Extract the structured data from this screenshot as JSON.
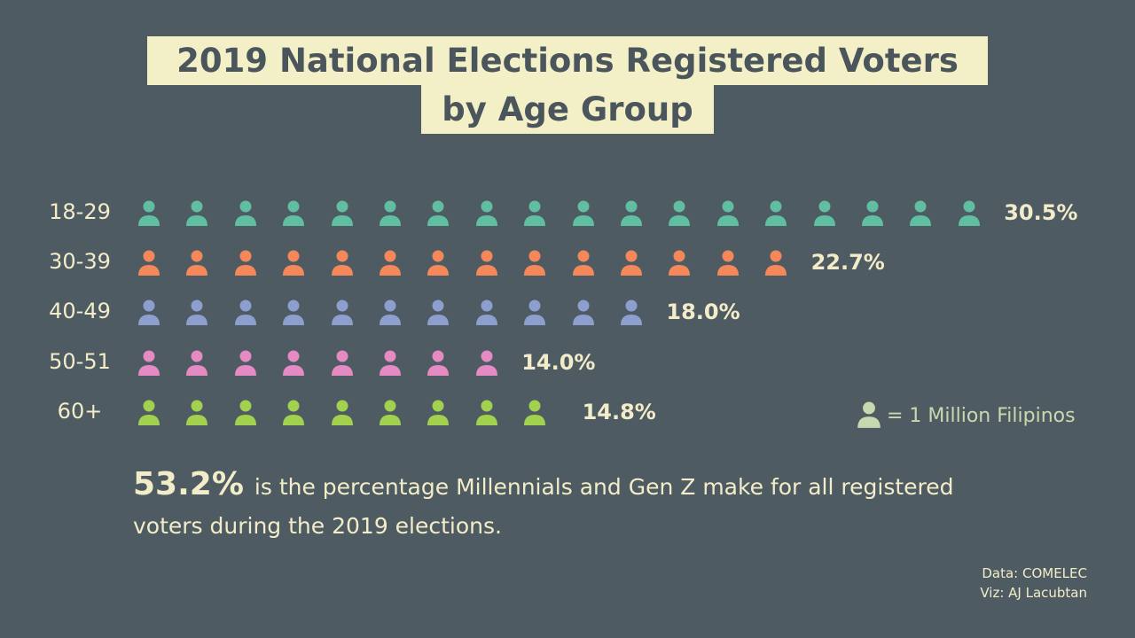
{
  "chart_data": {
    "type": "pictograph",
    "title": [
      "2019 National Elections Registered Voters",
      "by Age Group"
    ],
    "unit_label": "= 1 Million Filipinos",
    "categories": [
      "18-29",
      "30-39",
      "40-49",
      "50-51",
      "60+"
    ],
    "icon_counts": [
      18,
      14,
      11,
      8,
      9
    ],
    "percent_labels": [
      "30.5%",
      "22.7%",
      "18.0%",
      "14.0%",
      "14.8%"
    ],
    "colors": [
      "#5fbfa0",
      "#f4885a",
      "#8c9fcf",
      "#e68ac3",
      "#a2d04f"
    ],
    "legend_icon_color": "#c8d8b0",
    "icon": "person-icon"
  },
  "note": {
    "highlight": "53.2%",
    "text": "is the percentage Millennials and Gen Z make for all registered voters during the 2019 elections."
  },
  "credits": {
    "data": "Data: COMELEC",
    "viz": "Viz: AJ Lacubtan"
  }
}
